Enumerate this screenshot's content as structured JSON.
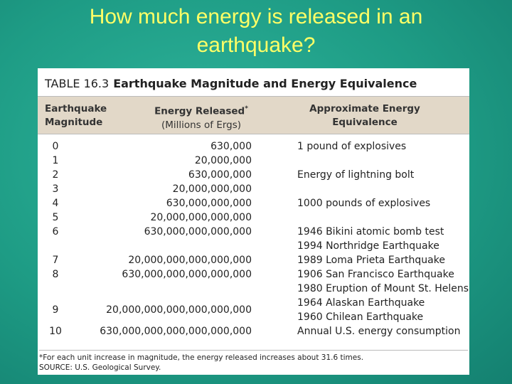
{
  "slide_title": "How much energy is released in an earthquake?",
  "table": {
    "label": "TABLE 16.3",
    "title": "Earthquake Magnitude and Energy Equivalence",
    "headers": {
      "magnitude": [
        "Earthquake",
        "Magnitude"
      ],
      "energy": [
        "Energy Released",
        "(Millions of Ergs)"
      ],
      "energy_mark": "*",
      "equivalence": [
        "Approximate Energy",
        "Equivalence"
      ]
    },
    "rows": [
      {
        "magnitude": "0",
        "energy": "630,000",
        "equivalents": [
          "1 pound of explosives"
        ]
      },
      {
        "magnitude": "1",
        "energy": "20,000,000",
        "equivalents": []
      },
      {
        "magnitude": "2",
        "energy": "630,000,000",
        "equivalents": [
          "Energy of lightning bolt"
        ]
      },
      {
        "magnitude": "3",
        "energy": "20,000,000,000",
        "equivalents": []
      },
      {
        "magnitude": "4",
        "energy": "630,000,000,000",
        "equivalents": [
          "1000 pounds of explosives"
        ]
      },
      {
        "magnitude": "5",
        "energy": "20,000,000,000,000",
        "equivalents": []
      },
      {
        "magnitude": "6",
        "energy": "630,000,000,000,000",
        "equivalents": [
          "1946 Bikini atomic bomb test",
          "1994 Northridge Earthquake"
        ]
      },
      {
        "magnitude": "7",
        "energy": "20,000,000,000,000,000",
        "equivalents": [
          "1989 Loma Prieta Earthquake"
        ]
      },
      {
        "magnitude": "8",
        "energy": "630,000,000,000,000,000",
        "equivalents": [
          "1906 San Francisco Earthquake",
          "1980 Eruption of Mount St. Helens"
        ]
      },
      {
        "magnitude": "9",
        "energy": "20,000,000,000,000,000,000",
        "equivalents": [
          "1964 Alaskan Earthquake",
          "1960 Chilean Earthquake"
        ]
      },
      {
        "magnitude": "10",
        "energy": "630,000,000,000,000,000,000",
        "equivalents": [
          "Annual U.S. energy consumption"
        ]
      }
    ],
    "footnotes": [
      "*For each unit increase in magnitude, the energy released increases about 31.6 times.",
      "SOURCE: U.S. Geological Survey."
    ]
  }
}
